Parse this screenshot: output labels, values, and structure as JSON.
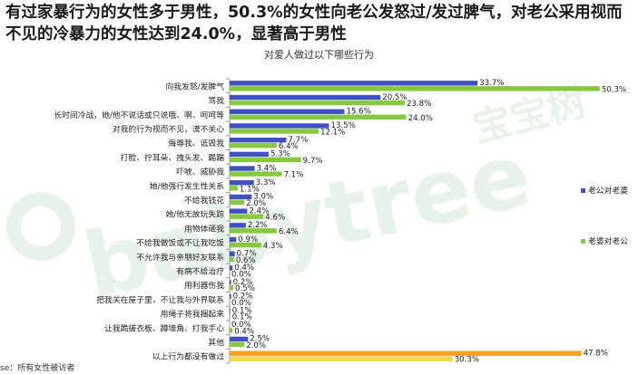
{
  "headline": "有过家暴行为的女性多于男性，50.3%的女性向老公发怒过/发过脾气，对老公采用视而不见的冷暴力的女性达到24.0%，显著高于男性",
  "footnote": "se：所有女性被访者",
  "watermark": {
    "brand_cn": "宝宝树",
    "brand_en": "babytree"
  },
  "colors": {
    "husband": "#3f51c0",
    "wife": "#86c93f",
    "none_husband": "#f5a11c",
    "none_wife": "#f7d74a"
  },
  "chart_data": {
    "type": "bar",
    "orientation": "horizontal",
    "title": "对爱人做过以下哪些行为",
    "categories": [
      "向我发怒/发脾气",
      "骂我",
      "长时间冷战，她/他不说话或只说哦、啊、呵呵等",
      "对我的行为视而不见，漠不关心",
      "侮辱我、诋毁我",
      "打脸、拧耳朵、拽头发、踢踹",
      "吓唬、威胁我",
      "她/他强行发生性关系",
      "不给我钱花",
      "她/他无故玩失踪",
      "用物体砸我",
      "不给我做饭或不让我吃饭",
      "不允许我与亲朋好友联系",
      "有病不给治疗",
      "用利器伤我",
      "把我关在屋子里，不让我与外界联系",
      "用绳子将我捆起来",
      "让我跪搓衣板、蹲墙角、打我手心",
      "其他",
      "以上行为都没有做过"
    ],
    "series": [
      {
        "name": "老公对老婆",
        "values": [
          33.7,
          20.5,
          15.6,
          13.5,
          7.7,
          5.3,
          3.4,
          3.3,
          3.0,
          2.4,
          2.2,
          0.9,
          0.7,
          0.4,
          0.2,
          0.2,
          0.1,
          0.0,
          2.5,
          47.8
        ]
      },
      {
        "name": "老婆对老公",
        "values": [
          50.3,
          23.8,
          24.0,
          12.1,
          6.4,
          9.7,
          7.1,
          1.1,
          2.0,
          4.6,
          6.4,
          4.3,
          0.6,
          0.0,
          0.5,
          0.0,
          0.1,
          0.4,
          2.0,
          30.3
        ]
      }
    ],
    "value_labels": {
      "husband": [
        "33.7%",
        "20.5%",
        "15.6%",
        "13.5%",
        "7.7%",
        "5.3%",
        "3.4%",
        "3.3%",
        "3.0%",
        "2.4%",
        "2.2%",
        "0.9%",
        "0.7%",
        "0.4%",
        "0.2%",
        "0.2%",
        "0.1%",
        "0.0%",
        "2.5%",
        "47.8%"
      ],
      "wife": [
        "50.3%",
        "23.8%",
        "24.0%",
        "12.1%",
        "6.4%",
        "9.7%",
        "7.1%",
        "1.1%",
        "2.0%",
        "4.6%",
        "6.4%",
        "4.3%",
        "0.6%",
        "0.0%",
        "0.5%",
        "0.0%",
        "0.1%",
        "0.4%",
        "2.0%",
        "30.3%"
      ]
    },
    "legend_placement": "right",
    "xlim": [
      0,
      55
    ],
    "grid": false
  }
}
